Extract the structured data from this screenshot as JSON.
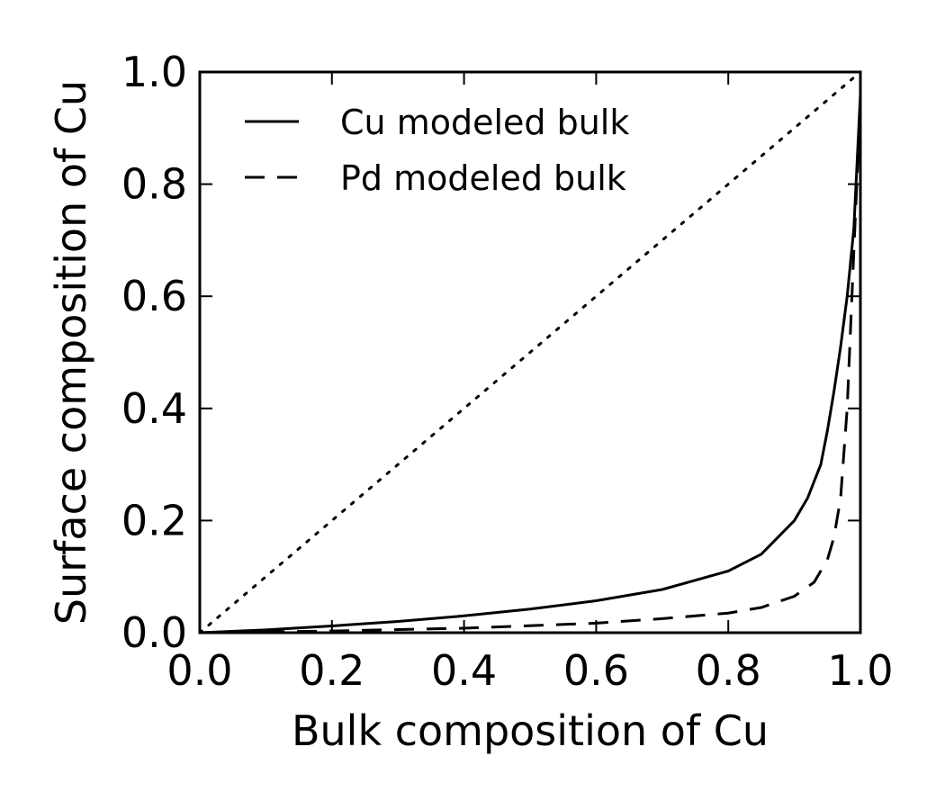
{
  "chart_data": {
    "type": "line",
    "xlabel": "Bulk composition of Cu",
    "ylabel": "Surface composition of Cu",
    "xlim": [
      0.0,
      1.0
    ],
    "ylim": [
      0.0,
      1.0
    ],
    "xticks": [
      "0.0",
      "0.2",
      "0.4",
      "0.6",
      "0.8",
      "1.0"
    ],
    "yticks": [
      "0.0",
      "0.2",
      "0.4",
      "0.6",
      "0.8",
      "1.0"
    ],
    "grid": false,
    "legend_position": "top-left",
    "series": [
      {
        "name": "Cu modeled bulk",
        "style": "solid",
        "x": [
          0.0,
          0.1,
          0.2,
          0.3,
          0.4,
          0.5,
          0.6,
          0.7,
          0.8,
          0.85,
          0.9,
          0.92,
          0.94,
          0.95,
          0.96,
          0.97,
          0.98,
          0.99,
          1.0
        ],
        "y": [
          0.0,
          0.005,
          0.012,
          0.02,
          0.03,
          0.042,
          0.057,
          0.077,
          0.11,
          0.14,
          0.2,
          0.24,
          0.3,
          0.36,
          0.43,
          0.51,
          0.6,
          0.72,
          0.96
        ]
      },
      {
        "name": "Pd modeled bulk",
        "style": "dashed",
        "x": [
          0.0,
          0.2,
          0.4,
          0.6,
          0.7,
          0.8,
          0.85,
          0.9,
          0.93,
          0.95,
          0.96,
          0.97,
          0.98,
          0.99,
          1.0
        ],
        "y": [
          0.0,
          0.003,
          0.008,
          0.017,
          0.025,
          0.035,
          0.045,
          0.065,
          0.09,
          0.13,
          0.17,
          0.24,
          0.4,
          0.68,
          0.95
        ]
      },
      {
        "name": "",
        "style": "dotted",
        "x": [
          0.0,
          1.0
        ],
        "y": [
          0.0,
          1.0
        ]
      }
    ]
  }
}
